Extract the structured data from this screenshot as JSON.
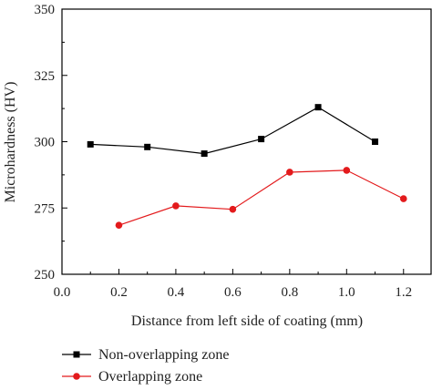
{
  "chart_data": {
    "type": "line",
    "xlabel": "Distance from left side of coating (mm)",
    "ylabel": "Microhardness (HV)",
    "xlim": [
      0.0,
      1.3
    ],
    "ylim": [
      250,
      350
    ],
    "x_ticks": [
      0.0,
      0.2,
      0.4,
      0.6,
      0.8,
      1.0,
      1.2
    ],
    "x_tick_labels": [
      "0.0",
      "0.2",
      "0.4",
      "0.6",
      "0.8",
      "1.0",
      "1.2"
    ],
    "y_ticks": [
      250,
      275,
      300,
      325,
      350
    ],
    "y_tick_labels": [
      "250",
      "275",
      "300",
      "325",
      "350"
    ],
    "grid": false,
    "legend_position": "bottom",
    "series": [
      {
        "name": "Non-overlapping zone",
        "marker": "square",
        "color": "#000000",
        "x": [
          0.1,
          0.3,
          0.5,
          0.7,
          0.9,
          1.1
        ],
        "y": [
          299,
          298,
          295.5,
          301,
          313,
          300
        ]
      },
      {
        "name": "Overlapping zone",
        "marker": "circle",
        "color": "#e31a1c",
        "x": [
          0.2,
          0.4,
          0.6,
          0.8,
          1.0,
          1.2
        ],
        "y": [
          268.5,
          275.8,
          274.5,
          288.5,
          289.2,
          278.5
        ]
      }
    ]
  }
}
